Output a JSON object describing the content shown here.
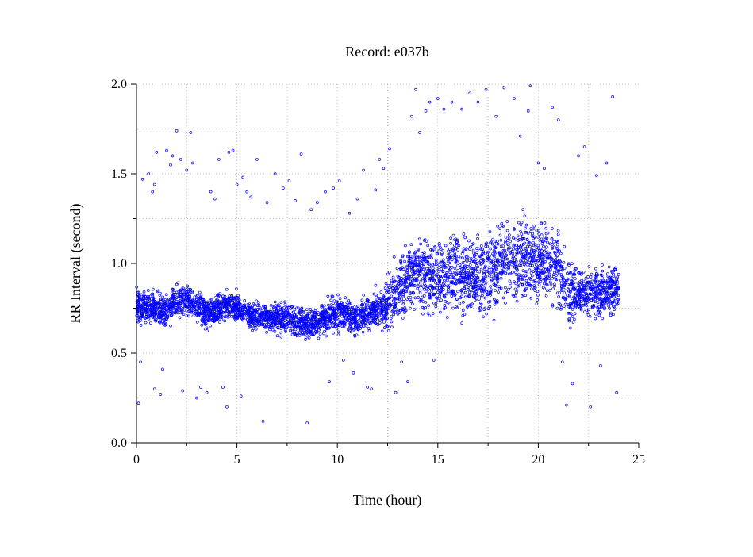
{
  "chart_data": {
    "type": "scatter",
    "title": "Record:  e037b",
    "xlabel": "Time (hour)",
    "ylabel": "RR Interval (second)",
    "xlim": [
      0,
      25
    ],
    "ylim": [
      0.0,
      2.0
    ],
    "x_ticks": [
      "0",
      "5",
      "10",
      "15",
      "20",
      "25"
    ],
    "y_ticks": [
      "0.0",
      "0.5",
      "1.0",
      "1.5",
      "2.0"
    ],
    "grid": true,
    "marker": "circle-open",
    "color": "#0000ff",
    "trend": [
      [
        0.0,
        0.76
      ],
      [
        0.5,
        0.74
      ],
      [
        1.0,
        0.76
      ],
      [
        1.5,
        0.74
      ],
      [
        2.0,
        0.8
      ],
      [
        2.5,
        0.8
      ],
      [
        3.0,
        0.76
      ],
      [
        3.5,
        0.72
      ],
      [
        4.0,
        0.74
      ],
      [
        4.5,
        0.77
      ],
      [
        5.0,
        0.76
      ],
      [
        5.5,
        0.72
      ],
      [
        6.0,
        0.7
      ],
      [
        6.5,
        0.7
      ],
      [
        7.0,
        0.69
      ],
      [
        7.5,
        0.7
      ],
      [
        8.0,
        0.68
      ],
      [
        8.5,
        0.66
      ],
      [
        9.0,
        0.68
      ],
      [
        9.5,
        0.7
      ],
      [
        10.0,
        0.73
      ],
      [
        10.5,
        0.7
      ],
      [
        11.0,
        0.68
      ],
      [
        11.5,
        0.72
      ],
      [
        12.0,
        0.75
      ],
      [
        12.5,
        0.76
      ],
      [
        13.0,
        0.84
      ],
      [
        13.5,
        0.9
      ],
      [
        14.0,
        0.95
      ],
      [
        14.5,
        0.93
      ],
      [
        15.0,
        0.92
      ],
      [
        15.5,
        0.94
      ],
      [
        16.0,
        0.95
      ],
      [
        16.5,
        0.93
      ],
      [
        17.0,
        0.92
      ],
      [
        17.5,
        0.93
      ],
      [
        18.0,
        0.98
      ],
      [
        18.5,
        1.02
      ],
      [
        19.0,
        1.0
      ],
      [
        19.5,
        1.03
      ],
      [
        20.0,
        1.0
      ],
      [
        20.5,
        0.99
      ],
      [
        21.0,
        0.98
      ],
      [
        21.5,
        0.85
      ],
      [
        22.0,
        0.82
      ],
      [
        22.5,
        0.83
      ],
      [
        23.0,
        0.84
      ],
      [
        23.5,
        0.84
      ],
      [
        24.0,
        0.85
      ]
    ],
    "spread": [
      [
        0.0,
        0.06
      ],
      [
        6.0,
        0.05
      ],
      [
        12.0,
        0.07
      ],
      [
        13.0,
        0.12
      ],
      [
        18.0,
        0.15
      ],
      [
        21.5,
        0.14
      ],
      [
        22.0,
        0.08
      ],
      [
        24.0,
        0.09
      ]
    ],
    "outliers": [
      [
        0.1,
        0.22
      ],
      [
        0.2,
        0.45
      ],
      [
        0.3,
        1.47
      ],
      [
        0.6,
        1.5
      ],
      [
        0.8,
        1.4
      ],
      [
        0.9,
        1.44
      ],
      [
        1.0,
        1.62
      ],
      [
        0.9,
        0.3
      ],
      [
        1.2,
        0.27
      ],
      [
        1.3,
        0.41
      ],
      [
        1.5,
        1.63
      ],
      [
        1.7,
        1.55
      ],
      [
        1.8,
        1.6
      ],
      [
        2.0,
        1.74
      ],
      [
        2.2,
        1.58
      ],
      [
        2.3,
        0.29
      ],
      [
        2.5,
        1.52
      ],
      [
        2.7,
        1.73
      ],
      [
        2.8,
        1.56
      ],
      [
        3.0,
        0.25
      ],
      [
        3.2,
        0.31
      ],
      [
        3.5,
        0.28
      ],
      [
        3.7,
        1.4
      ],
      [
        3.9,
        1.36
      ],
      [
        4.1,
        1.58
      ],
      [
        4.3,
        0.31
      ],
      [
        4.5,
        0.2
      ],
      [
        4.6,
        1.62
      ],
      [
        4.8,
        1.63
      ],
      [
        5.0,
        1.44
      ],
      [
        5.2,
        0.26
      ],
      [
        5.3,
        1.48
      ],
      [
        5.5,
        1.4
      ],
      [
        5.7,
        1.37
      ],
      [
        6.0,
        1.58
      ],
      [
        6.3,
        0.12
      ],
      [
        6.5,
        1.34
      ],
      [
        6.9,
        1.5
      ],
      [
        7.3,
        1.42
      ],
      [
        7.6,
        1.46
      ],
      [
        7.9,
        1.35
      ],
      [
        8.2,
        1.61
      ],
      [
        8.5,
        0.11
      ],
      [
        8.7,
        1.3
      ],
      [
        9.0,
        1.34
      ],
      [
        9.4,
        1.4
      ],
      [
        9.6,
        0.34
      ],
      [
        9.8,
        1.42
      ],
      [
        10.1,
        1.46
      ],
      [
        10.3,
        0.46
      ],
      [
        10.6,
        1.28
      ],
      [
        10.8,
        0.39
      ],
      [
        11.0,
        1.36
      ],
      [
        11.3,
        1.52
      ],
      [
        11.5,
        0.31
      ],
      [
        11.7,
        0.3
      ],
      [
        11.9,
        1.41
      ],
      [
        12.1,
        1.58
      ],
      [
        12.3,
        1.53
      ],
      [
        12.6,
        1.64
      ],
      [
        12.9,
        0.28
      ],
      [
        13.2,
        0.45
      ],
      [
        13.5,
        0.34
      ],
      [
        13.7,
        1.82
      ],
      [
        13.9,
        1.97
      ],
      [
        14.1,
        1.73
      ],
      [
        14.4,
        1.85
      ],
      [
        14.6,
        1.9
      ],
      [
        14.8,
        0.46
      ],
      [
        15.0,
        1.92
      ],
      [
        15.3,
        1.86
      ],
      [
        15.7,
        1.9
      ],
      [
        16.2,
        1.86
      ],
      [
        16.6,
        1.95
      ],
      [
        17.0,
        1.9
      ],
      [
        17.4,
        1.97
      ],
      [
        17.9,
        1.82
      ],
      [
        18.3,
        1.98
      ],
      [
        18.8,
        1.92
      ],
      [
        19.1,
        1.71
      ],
      [
        19.5,
        1.85
      ],
      [
        19.6,
        1.99
      ],
      [
        20.0,
        1.56
      ],
      [
        20.3,
        1.53
      ],
      [
        20.7,
        1.87
      ],
      [
        21.0,
        1.8
      ],
      [
        21.2,
        0.45
      ],
      [
        21.4,
        0.21
      ],
      [
        21.7,
        0.33
      ],
      [
        22.0,
        1.6
      ],
      [
        22.3,
        1.65
      ],
      [
        22.6,
        0.2
      ],
      [
        22.9,
        1.49
      ],
      [
        23.1,
        0.43
      ],
      [
        23.4,
        1.56
      ],
      [
        23.7,
        1.93
      ],
      [
        23.9,
        0.28
      ]
    ]
  }
}
